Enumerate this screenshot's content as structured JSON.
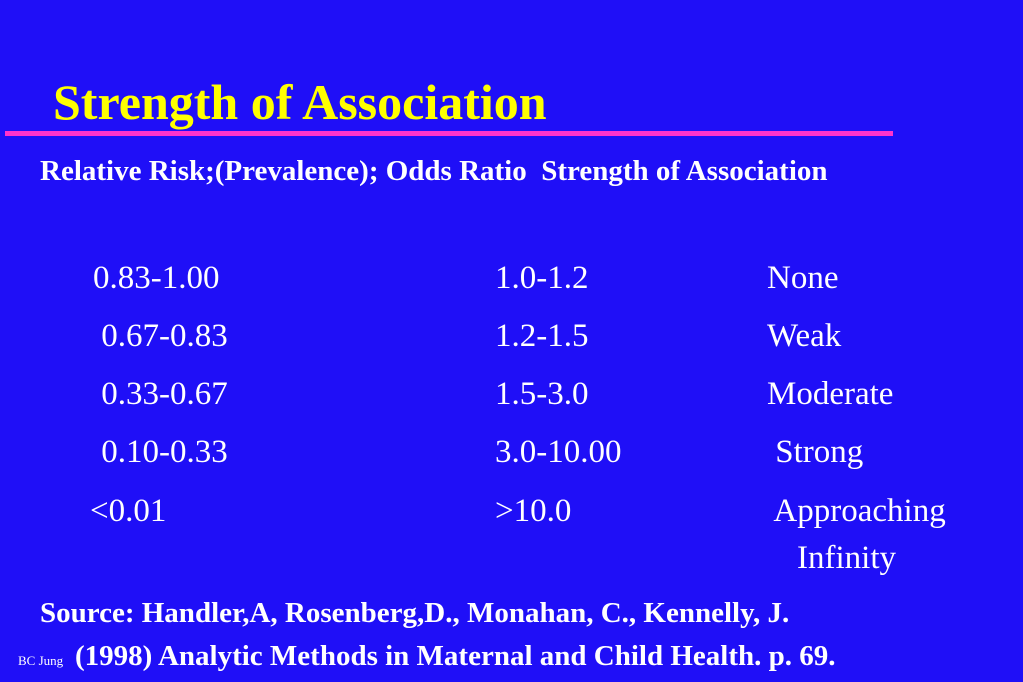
{
  "slide": {
    "title": "Strength of Association",
    "header": "Relative Risk;(Prevalence); Odds Ratio  Strength of Association",
    "rows": [
      {
        "low": "0.83-1.00",
        "high": "1.0-1.2",
        "strength": "None"
      },
      {
        "low": " 0.67-0.83",
        "high": "1.2-1.5",
        "strength": "Weak"
      },
      {
        "low": " 0.33-0.67",
        "high": "1.5-3.0",
        "strength": "Moderate"
      },
      {
        "low": " 0.10-0.33",
        "high": "3.0-10.00",
        "strength": " Strong"
      },
      {
        "low": "<0.01",
        "high": ">10.0",
        "strength": " Approaching",
        "strength_line2": "Infinity"
      }
    ],
    "source_line1": "Source: Handler,A, Rosenberg,D., Monahan, C., Kennelly, J.",
    "source_line2": "(1998) Analytic Methods in Maternal and Child Health. p. 69.",
    "footer": "BC Jung"
  },
  "colors": {
    "background": "#1f0ff7",
    "title": "#ffff00",
    "rule": "#ff33cc",
    "text": "#ffffff"
  }
}
